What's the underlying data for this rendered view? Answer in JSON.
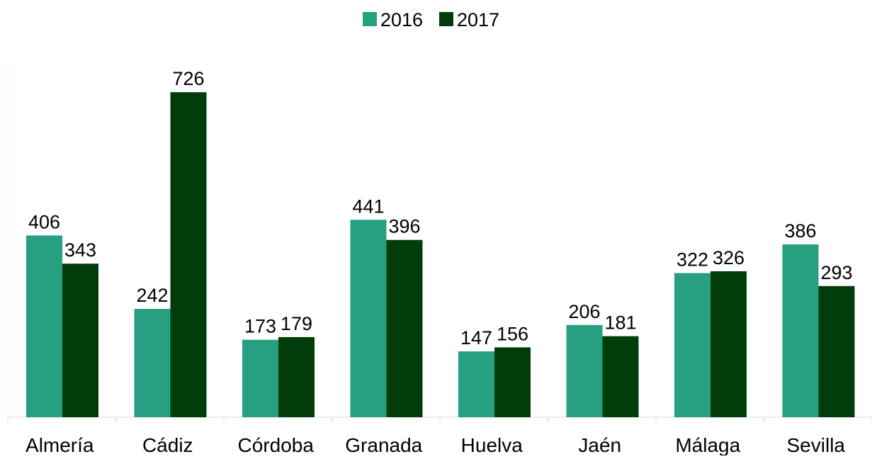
{
  "chart_data": {
    "type": "bar",
    "title": "",
    "xlabel": "",
    "ylabel": "",
    "categories": [
      "Almería",
      "Cádiz",
      "Córdoba",
      "Granada",
      "Huelva",
      "Jaén",
      "Málaga",
      "Sevilla"
    ],
    "series": [
      {
        "name": "2016",
        "color": "#26a081",
        "values": [
          406,
          242,
          173,
          441,
          147,
          206,
          322,
          386
        ]
      },
      {
        "name": "2017",
        "color": "#003d0a",
        "values": [
          343,
          726,
          179,
          396,
          156,
          181,
          326,
          293
        ]
      }
    ],
    "ylim": [
      0,
      800
    ],
    "grid": false,
    "legend_position": "top-center",
    "data_labels": true,
    "axis_color": "#d9d9d9"
  }
}
